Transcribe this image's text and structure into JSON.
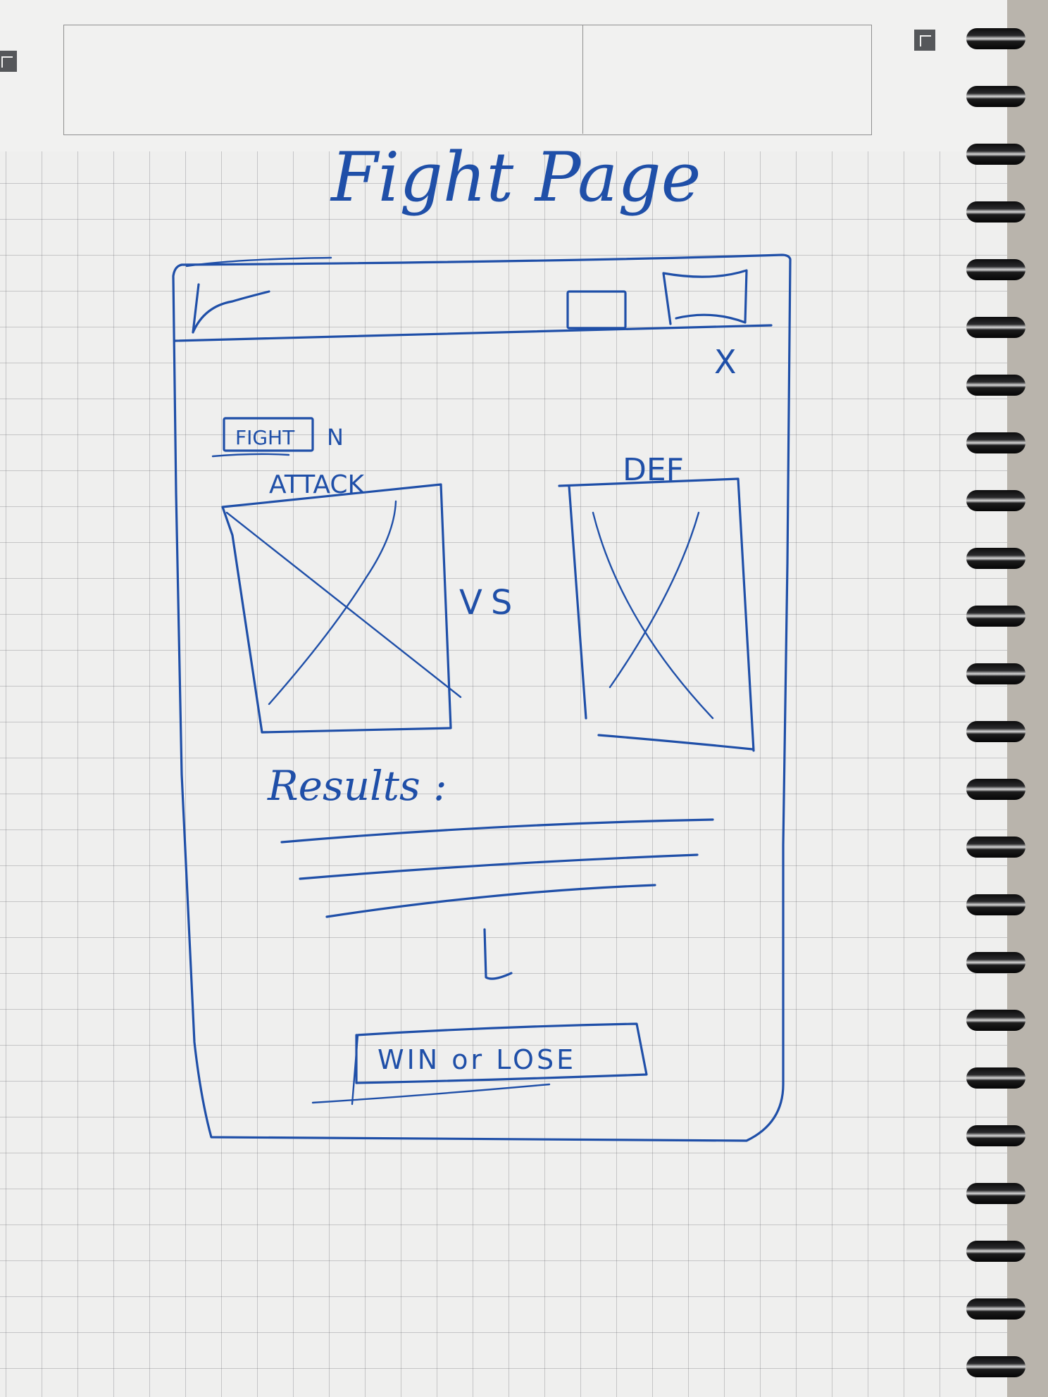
{
  "sketch": {
    "title": "Fight Page",
    "fight_button_label": "FIGHT",
    "fight_suffix": "N",
    "attacker_label": "ATTACK",
    "defender_label": "DEF",
    "versus_label": "VS",
    "close_symbol": "X",
    "results_label": "Results :",
    "outcome_button_label": "WIN or LOSE"
  },
  "colors": {
    "ink": "#1f4fa8",
    "paper": "#efefee",
    "grid": "#9aa0a6",
    "spiral": "#111111"
  }
}
